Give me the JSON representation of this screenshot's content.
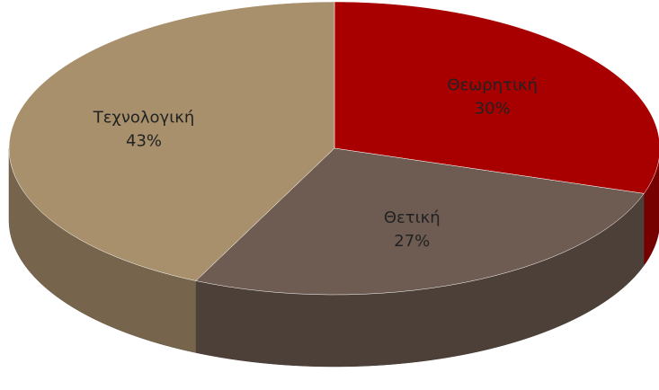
{
  "chart_data": {
    "type": "pie3d",
    "categories": [
      "Θεωρητική",
      "Θετική",
      "Τεχνολογική"
    ],
    "values": [
      30,
      27,
      43
    ],
    "value_labels": [
      "30%",
      "27%",
      "43%"
    ],
    "colors": [
      "#a80000",
      "#6e5c52",
      "#a8906c"
    ]
  }
}
